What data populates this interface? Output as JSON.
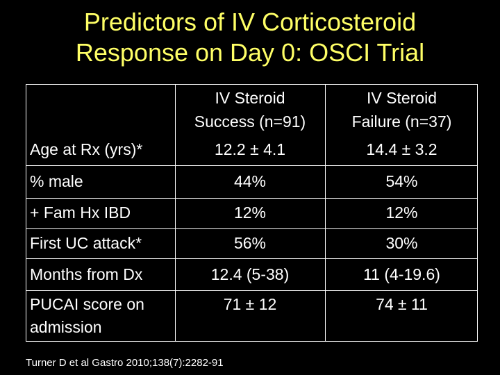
{
  "title": {
    "line1": "Predictors of IV Corticosteroid",
    "line2": "Response on Day 0: OSCI Trial"
  },
  "table": {
    "headers": {
      "col1_line1": "IV Steroid",
      "col1_line2": "Success (n=91)",
      "col2_line1": "IV Steroid",
      "col2_line2": "Failure (n=37)"
    },
    "rows": [
      {
        "label": "Age at Rx (yrs)*",
        "success": "12.2 ± 4.1",
        "failure": "14.4 ± 3.2"
      },
      {
        "label": "% male",
        "success": "44%",
        "failure": "54%"
      },
      {
        "label": "+ Fam Hx IBD",
        "success": "12%",
        "failure": "12%"
      },
      {
        "label": "First UC attack*",
        "success": "56%",
        "failure": "30%"
      },
      {
        "label": "Months from Dx",
        "success": "12.4 (5-38)",
        "failure": "11 (4-19.6)"
      },
      {
        "label_line1": "PUCAI score on",
        "label_line2": "admission",
        "success": "71 ± 12",
        "failure": "74 ± 11"
      }
    ]
  },
  "footer": {
    "citation": "Turner D et al Gastro 2010;138(7):2282-91"
  },
  "colors": {
    "background": "#000000",
    "title": "#ffff66",
    "text": "#ffffff"
  }
}
